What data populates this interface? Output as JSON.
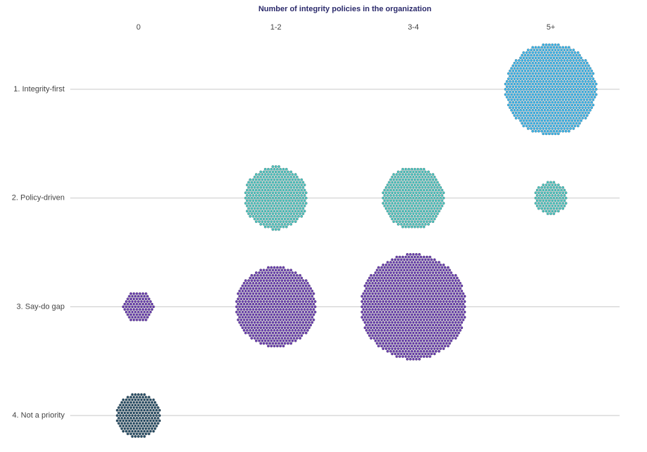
{
  "chart_data": {
    "type": "bubble",
    "title": "Number of integrity policies in the organization",
    "categories": [
      "0",
      "1-2",
      "3-4",
      "5+"
    ],
    "series": [
      {
        "name": "1. Integrity-first",
        "color": "#3bb5ea",
        "values": [
          null,
          null,
          null,
          830
        ]
      },
      {
        "name": "2. Policy-driven",
        "color": "#4cc4bf",
        "values": [
          null,
          398,
          380,
          104
        ]
      },
      {
        "name": "3. Say-do gap",
        "color": "#6b3fb0",
        "values": [
          95,
          638,
          1104,
          null
        ]
      },
      {
        "name": "4. Not a priority",
        "color": "#2a5068",
        "values": [
          201,
          null,
          null,
          null
        ]
      }
    ]
  }
}
